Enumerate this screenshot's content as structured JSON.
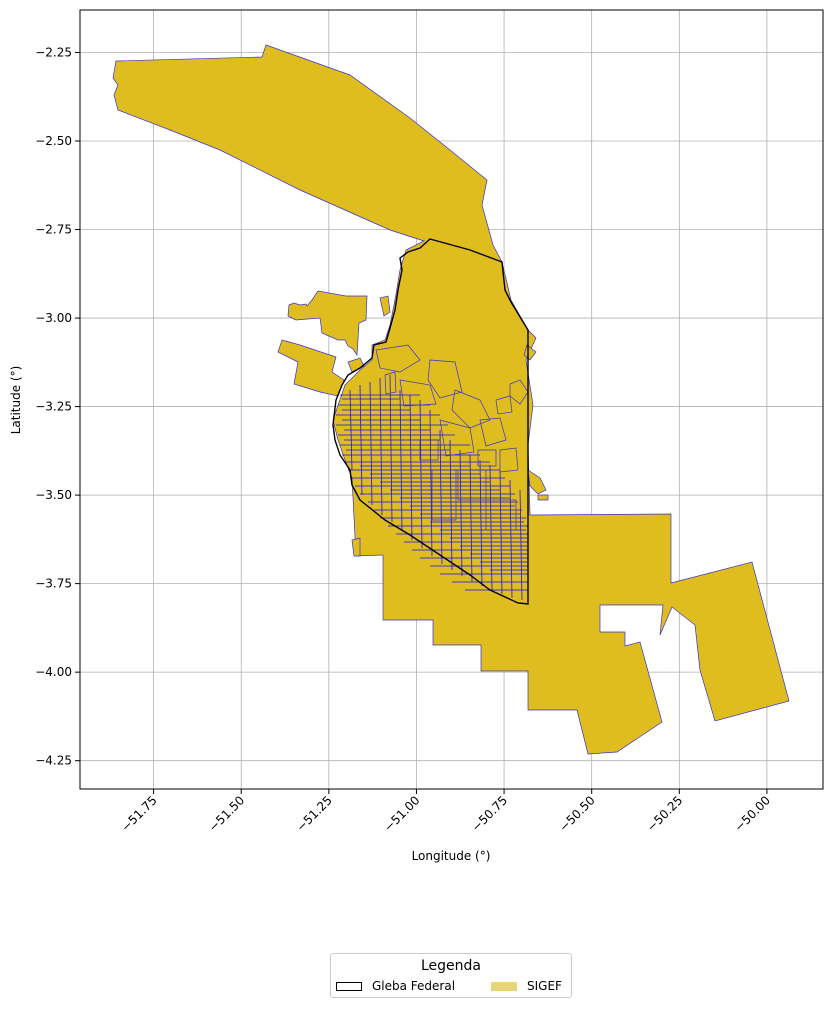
{
  "chart_data": {
    "type": "map",
    "xlabel": "Longitude (°)",
    "ylabel": "Latitude (°)",
    "xlim": [
      -51.96,
      -49.84
    ],
    "ylim": [
      -4.33,
      -2.13
    ],
    "xticks": [
      "−51.75",
      "−51.50",
      "−51.25",
      "−51.00",
      "−50.75",
      "−50.50",
      "−50.25",
      "−50.00"
    ],
    "xtick_values": [
      -51.75,
      -51.5,
      -51.25,
      -51.0,
      -50.75,
      -50.5,
      -50.25,
      -50.0
    ],
    "yticks": [
      "−2.25",
      "−2.50",
      "−2.75",
      "−3.00",
      "−3.25",
      "−3.50",
      "−3.75",
      "−4.00",
      "−4.25"
    ],
    "ytick_values": [
      -2.25,
      -2.5,
      -2.75,
      -3.0,
      -3.25,
      -3.5,
      -3.75,
      -4.0,
      -4.25
    ],
    "grid": true,
    "legend": {
      "title": "Legenda",
      "placement": "bottom-center, below plot",
      "entries": [
        {
          "label": "Gleba Federal",
          "style": "outline",
          "color": "#000000"
        },
        {
          "label": "SIGEF",
          "style": "fill",
          "color": "#e8d57a"
        }
      ]
    },
    "colors": {
      "sigef_fill": "#dfbd1f",
      "sigef_edge": "#3a32c8",
      "parcel_edge": "#1a10ee",
      "gleba_edge": "#000000",
      "grid": "#b0b0b0"
    }
  }
}
